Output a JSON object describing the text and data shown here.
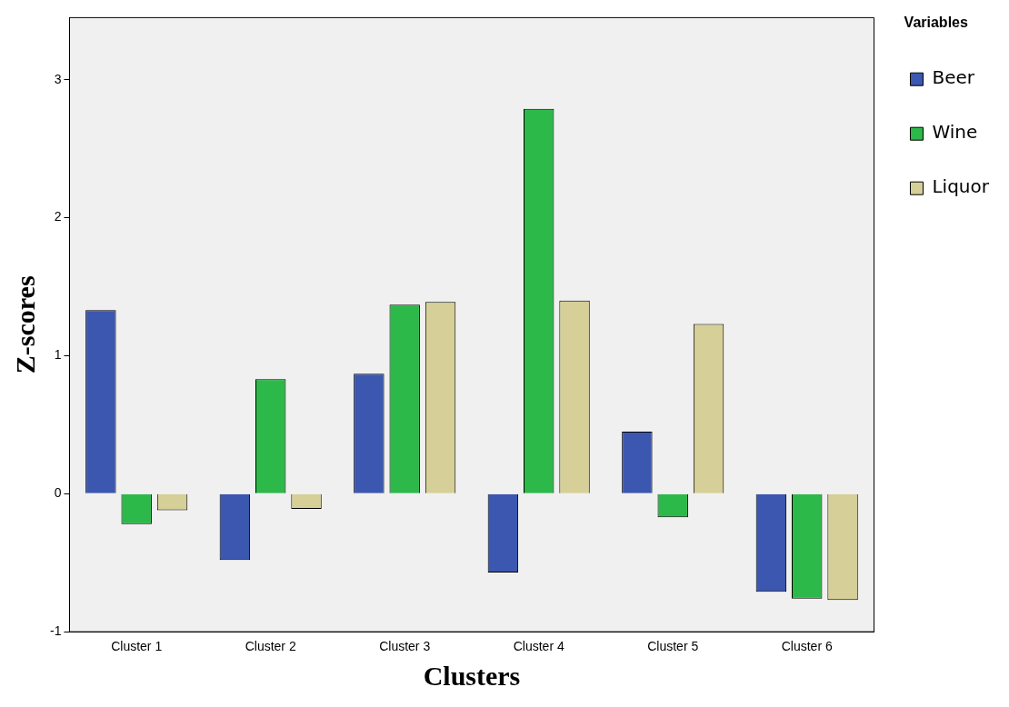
{
  "chart_data": {
    "type": "bar",
    "xlabel": "Clusters",
    "ylabel": "Z-scores",
    "legend_title": "Variables",
    "legend": "right",
    "grid": false,
    "categories": [
      "Cluster 1",
      "Cluster 2",
      "Cluster 3",
      "Cluster 4",
      "Cluster 5",
      "Cluster 6"
    ],
    "series": [
      {
        "name": "Beer",
        "color": "#3b57b0",
        "values": [
          1.33,
          -0.48,
          0.87,
          -0.57,
          0.45,
          -0.71
        ]
      },
      {
        "name": "Wine",
        "color": "#2db84a",
        "values": [
          -0.22,
          0.83,
          1.37,
          2.79,
          -0.17,
          -0.76
        ]
      },
      {
        "name": "Liquor",
        "color": "#d6cf97",
        "values": [
          -0.12,
          -0.11,
          1.39,
          1.4,
          1.23,
          -0.77
        ]
      }
    ],
    "ylim": [
      -1,
      3.45
    ],
    "yticks": [
      -1,
      0,
      1,
      2,
      3
    ]
  }
}
